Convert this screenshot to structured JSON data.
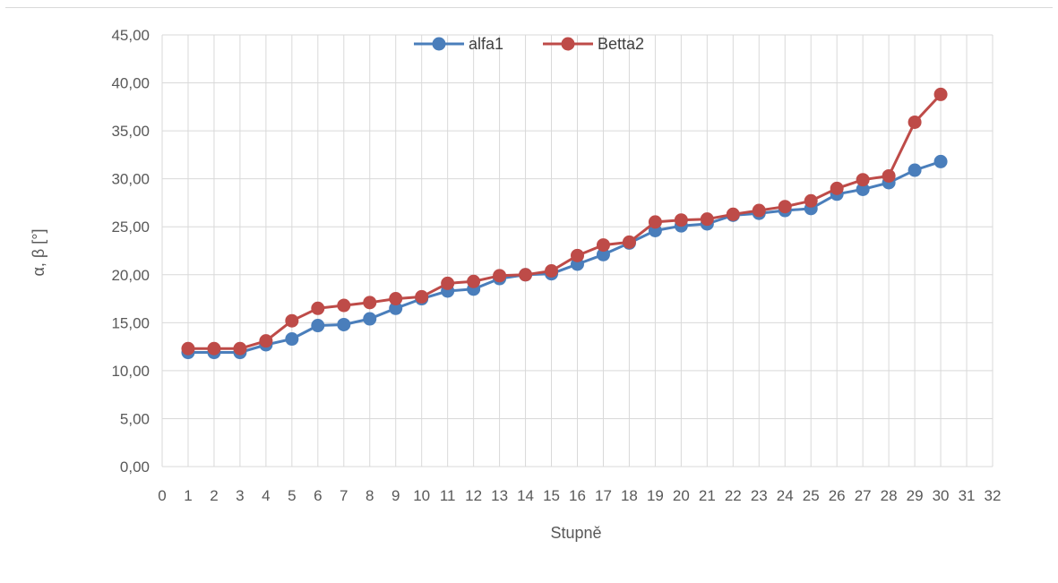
{
  "chart_data": {
    "type": "line",
    "title": "",
    "xlabel": "Stupně",
    "ylabel": "α, β [°]",
    "xlim": [
      0,
      32
    ],
    "ylim": [
      0,
      45
    ],
    "x_ticks": [
      "0",
      "1",
      "2",
      "3",
      "4",
      "5",
      "6",
      "7",
      "8",
      "9",
      "10",
      "11",
      "12",
      "13",
      "14",
      "15",
      "16",
      "17",
      "18",
      "19",
      "20",
      "21",
      "22",
      "23",
      "24",
      "25",
      "26",
      "27",
      "28",
      "29",
      "30",
      "31",
      "32"
    ],
    "y_ticks": [
      "0,00",
      "5,00",
      "10,00",
      "15,00",
      "20,00",
      "25,00",
      "30,00",
      "35,00",
      "40,00",
      "45,00"
    ],
    "grid": true,
    "legend_position": "top",
    "x": [
      1,
      2,
      3,
      4,
      5,
      6,
      7,
      8,
      9,
      10,
      11,
      12,
      13,
      14,
      15,
      16,
      17,
      18,
      19,
      20,
      21,
      22,
      23,
      24,
      25,
      26,
      27,
      28,
      29,
      30
    ],
    "series": [
      {
        "name": "alfa1",
        "color": "#4a7ebb",
        "values": [
          11.9,
          11.9,
          11.9,
          12.7,
          13.3,
          14.7,
          14.8,
          15.4,
          16.5,
          17.5,
          18.3,
          18.5,
          19.6,
          20.0,
          20.1,
          21.1,
          22.1,
          23.3,
          24.6,
          25.1,
          25.3,
          26.2,
          26.4,
          26.7,
          26.9,
          28.4,
          28.9,
          29.6,
          30.9,
          31.8
        ]
      },
      {
        "name": "Betta2",
        "color": "#be4b48",
        "values": [
          12.3,
          12.3,
          12.3,
          13.1,
          15.2,
          16.5,
          16.8,
          17.1,
          17.5,
          17.7,
          19.1,
          19.3,
          19.9,
          20.0,
          20.4,
          22.0,
          23.1,
          23.4,
          25.5,
          25.7,
          25.8,
          26.3,
          26.7,
          27.1,
          27.7,
          29.0,
          29.9,
          30.3,
          35.9,
          38.8
        ]
      }
    ]
  }
}
